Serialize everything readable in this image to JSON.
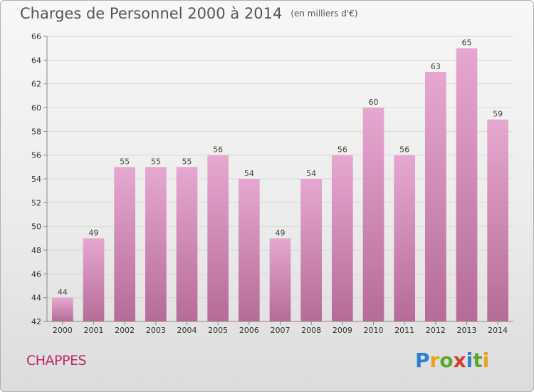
{
  "title": "Charges de Personnel 2000 à 2014",
  "subtitle": "(en milliers d'€)",
  "commune": "CHAPPES",
  "logo": {
    "text": "Proxiti",
    "letters": [
      {
        "ch": "P",
        "color": "#2f7fd0"
      },
      {
        "ch": "r",
        "color": "#e9a21b"
      },
      {
        "ch": "o",
        "color": "#59a82b"
      },
      {
        "ch": "x",
        "color": "#d93a2a"
      },
      {
        "ch": "i",
        "color": "#2f7fd0"
      },
      {
        "ch": "t",
        "color": "#59a82b"
      },
      {
        "ch": "i",
        "color": "#e9a21b"
      }
    ]
  },
  "colors": {
    "bar_top": "#e6a8d0",
    "bar_bottom": "#b56c97",
    "grid": "#d8d8d8",
    "axis": "#888888"
  },
  "chart_data": {
    "type": "bar",
    "title": "Charges de Personnel 2000 à 2014",
    "subtitle": "(en milliers d'€)",
    "categories": [
      "2000",
      "2001",
      "2002",
      "2003",
      "2004",
      "2005",
      "2006",
      "2007",
      "2008",
      "2009",
      "2010",
      "2011",
      "2012",
      "2013",
      "2014"
    ],
    "values": [
      44,
      49,
      55,
      55,
      55,
      56,
      54,
      49,
      54,
      56,
      60,
      56,
      63,
      65,
      59
    ],
    "ylim": [
      42,
      66
    ],
    "yticks": [
      42,
      44,
      46,
      48,
      50,
      52,
      54,
      56,
      58,
      60,
      62,
      64,
      66
    ],
    "grid": true,
    "xlabel": "",
    "ylabel": ""
  }
}
